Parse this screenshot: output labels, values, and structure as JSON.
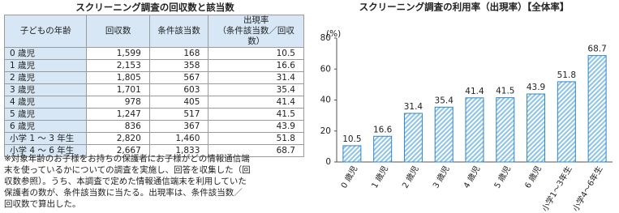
{
  "table": {
    "title": "スクリーニング調査の回収数と該当数",
    "header": [
      "子どもの年齢",
      "回収数",
      "条件該当数",
      [
        "出現率",
        "（条件該当数／回収数）"
      ]
    ],
    "rows": [
      [
        "0 歳児",
        "1,599",
        "168",
        "10.5"
      ],
      [
        "1 歳児",
        "2,153",
        "358",
        "16.6"
      ],
      [
        "2 歳児",
        "1,805",
        "567",
        "31.4"
      ],
      [
        "3 歳児",
        "1,701",
        "603",
        "35.4"
      ],
      [
        "4 歳児",
        "978",
        "405",
        "41.4"
      ],
      [
        "5 歳児",
        "1,247",
        "517",
        "41.5"
      ],
      [
        "6 歳児",
        "836",
        "367",
        "43.9"
      ],
      [
        "小学 1 ～ 3 年生",
        "2,820",
        "1,460",
        "51.8"
      ],
      [
        "小学 4 ～ 6 年生",
        "2,667",
        "1,833",
        "68.7"
      ]
    ],
    "note": [
      "※対象年齢のお子様をお持ちの保護者にお子様がどの情報通信端",
      "末を使っているかについての調査を実施し、回答を収集した（回",
      "収数参照）。うち、本調査で定めた情報通信端末を利用していた",
      "保護者の数が、条件該当数に当たる。出現率は、条件該当数／",
      "回収数で算出した。"
    ]
  },
  "chart_data": {
    "type": "bar",
    "title": "スクリーニング調査の利用率（出現率）【全体率】",
    "y_unit": "(%)",
    "categories": [
      "0 歳児",
      "1 歳児",
      "2 歳児",
      "3 歳児",
      "4 歳児",
      "5 歳児",
      "6 歳児",
      "小学1～3年生",
      "小学4～6年生"
    ],
    "values": [
      10.5,
      16.6,
      31.4,
      35.4,
      41.4,
      41.5,
      43.9,
      51.8,
      68.7
    ],
    "color": "#2f86c8",
    "ylim": [
      0,
      80
    ],
    "yticks": [
      0,
      20,
      40,
      60,
      80
    ],
    "grid": false
  }
}
